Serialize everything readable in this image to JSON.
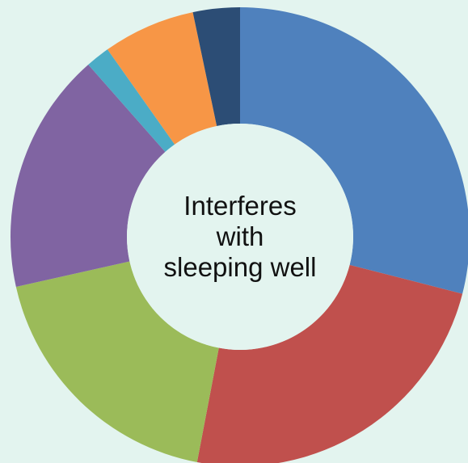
{
  "chart_data": {
    "type": "pie",
    "center_text": "Interferes with sleeping well",
    "slices": [
      {
        "value": 29.0,
        "color": "#4f81bd"
      },
      {
        "value": 24.0,
        "color": "#c0504d"
      },
      {
        "value": 18.5,
        "color": "#9bbb59"
      },
      {
        "value": 17.0,
        "color": "#8064a2"
      },
      {
        "value": 1.7,
        "color": "#4bacc6"
      },
      {
        "value": 6.5,
        "color": "#f79646"
      },
      {
        "value": 3.3,
        "color": "#2c4d75"
      }
    ]
  }
}
